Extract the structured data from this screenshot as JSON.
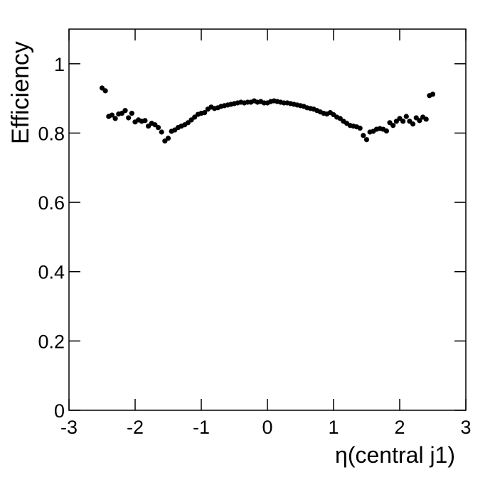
{
  "chart_data": {
    "type": "scatter",
    "xlabel": "η(central j1)",
    "ylabel": "Efficiency",
    "color": "#000000",
    "xlim": [
      -3,
      3
    ],
    "ylim": [
      0,
      1.1
    ],
    "xticks": [
      -3,
      -2,
      -1,
      0,
      1,
      2,
      3
    ],
    "yticks": [
      0,
      0.2,
      0.4,
      0.6,
      0.8,
      1
    ],
    "x": [
      -2.5,
      -2.45,
      -2.4,
      -2.35,
      -2.3,
      -2.25,
      -2.2,
      -2.15,
      -2.1,
      -2.05,
      -2.0,
      -1.95,
      -1.9,
      -1.85,
      -1.8,
      -1.75,
      -1.7,
      -1.65,
      -1.6,
      -1.55,
      -1.5,
      -1.45,
      -1.4,
      -1.35,
      -1.3,
      -1.25,
      -1.2,
      -1.15,
      -1.1,
      -1.05,
      -1.0,
      -0.95,
      -0.9,
      -0.85,
      -0.8,
      -0.75,
      -0.7,
      -0.65,
      -0.6,
      -0.55,
      -0.5,
      -0.45,
      -0.4,
      -0.35,
      -0.3,
      -0.25,
      -0.2,
      -0.15,
      -0.1,
      -0.05,
      0,
      0.05,
      0.1,
      0.15,
      0.2,
      0.25,
      0.3,
      0.35,
      0.4,
      0.45,
      0.5,
      0.55,
      0.6,
      0.65,
      0.7,
      0.75,
      0.8,
      0.85,
      0.9,
      0.95,
      1.0,
      1.05,
      1.1,
      1.15,
      1.2,
      1.25,
      1.3,
      1.35,
      1.4,
      1.45,
      1.5,
      1.55,
      1.6,
      1.65,
      1.7,
      1.75,
      1.8,
      1.85,
      1.9,
      1.95,
      2.0,
      2.05,
      2.1,
      2.15,
      2.2,
      2.25,
      2.3,
      2.35,
      2.4,
      2.45,
      2.5
    ],
    "values": [
      0.93,
      0.922,
      0.848,
      0.852,
      0.842,
      0.855,
      0.857,
      0.865,
      0.844,
      0.857,
      0.832,
      0.838,
      0.834,
      0.836,
      0.82,
      0.828,
      0.824,
      0.816,
      0.803,
      0.777,
      0.785,
      0.805,
      0.809,
      0.816,
      0.82,
      0.824,
      0.83,
      0.838,
      0.846,
      0.854,
      0.857,
      0.859,
      0.869,
      0.875,
      0.871,
      0.873,
      0.877,
      0.879,
      0.881,
      0.883,
      0.885,
      0.887,
      0.889,
      0.887,
      0.889,
      0.889,
      0.893,
      0.889,
      0.891,
      0.887,
      0.887,
      0.891,
      0.893,
      0.891,
      0.889,
      0.887,
      0.887,
      0.885,
      0.883,
      0.881,
      0.879,
      0.877,
      0.873,
      0.871,
      0.869,
      0.865,
      0.861,
      0.857,
      0.855,
      0.859,
      0.853,
      0.846,
      0.842,
      0.834,
      0.828,
      0.822,
      0.82,
      0.818,
      0.814,
      0.793,
      0.781,
      0.803,
      0.805,
      0.811,
      0.813,
      0.811,
      0.806,
      0.83,
      0.822,
      0.834,
      0.842,
      0.834,
      0.848,
      0.834,
      0.826,
      0.844,
      0.836,
      0.846,
      0.84,
      0.908,
      0.912
    ]
  }
}
